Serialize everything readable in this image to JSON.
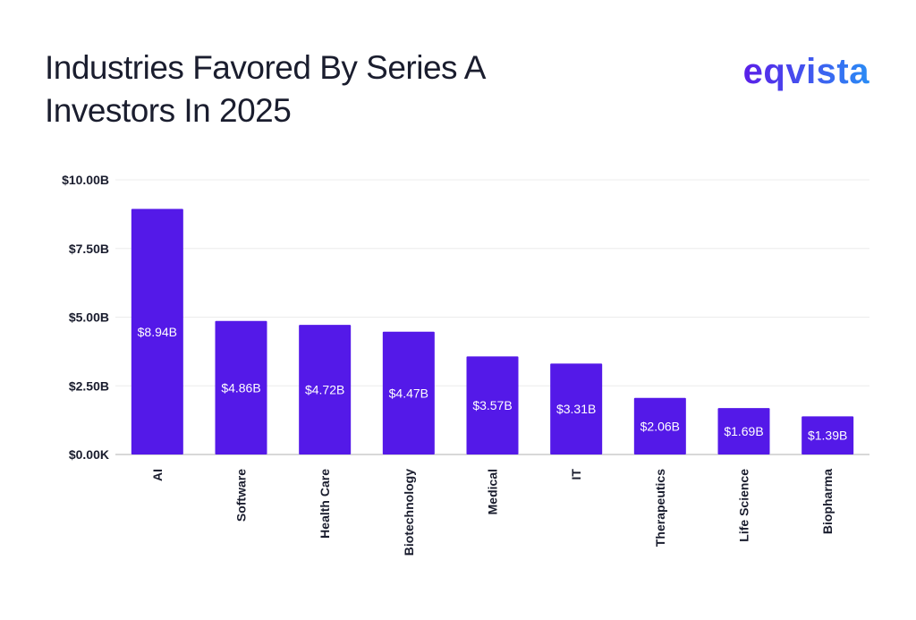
{
  "header": {
    "title_line1": "Industries Favored By Series A",
    "title_line2": "Investors In 2025",
    "logo": "eqvista"
  },
  "colors": {
    "bar": "#5419E8",
    "grid": "#ECECEC",
    "axis": "#B0B0B0"
  },
  "chart_data": {
    "type": "bar",
    "title": "Industries Favored By Series A Investors In 2025",
    "xlabel": "",
    "ylabel": "",
    "categories": [
      "AI",
      "Software",
      "Health Care",
      "Biotechnology",
      "Medical",
      "IT",
      "Therapeutics",
      "Life Science",
      "Biopharma"
    ],
    "values": [
      8.94,
      4.86,
      4.72,
      4.47,
      3.57,
      3.31,
      2.06,
      1.69,
      1.39
    ],
    "value_labels": [
      "$8.94B",
      "$4.86B",
      "$4.72B",
      "$4.47B",
      "$3.57B",
      "$3.31B",
      "$2.06B",
      "$1.69B",
      "$1.39B"
    ],
    "unit": "billion USD",
    "ylim": [
      0,
      10
    ],
    "yticks": [
      0,
      2.5,
      5,
      7.5,
      10
    ],
    "ytick_labels": [
      "$0.00K",
      "$2.50B",
      "$5.00B",
      "$7.50B",
      "$10.00B"
    ],
    "grid": true,
    "legend": "none"
  }
}
